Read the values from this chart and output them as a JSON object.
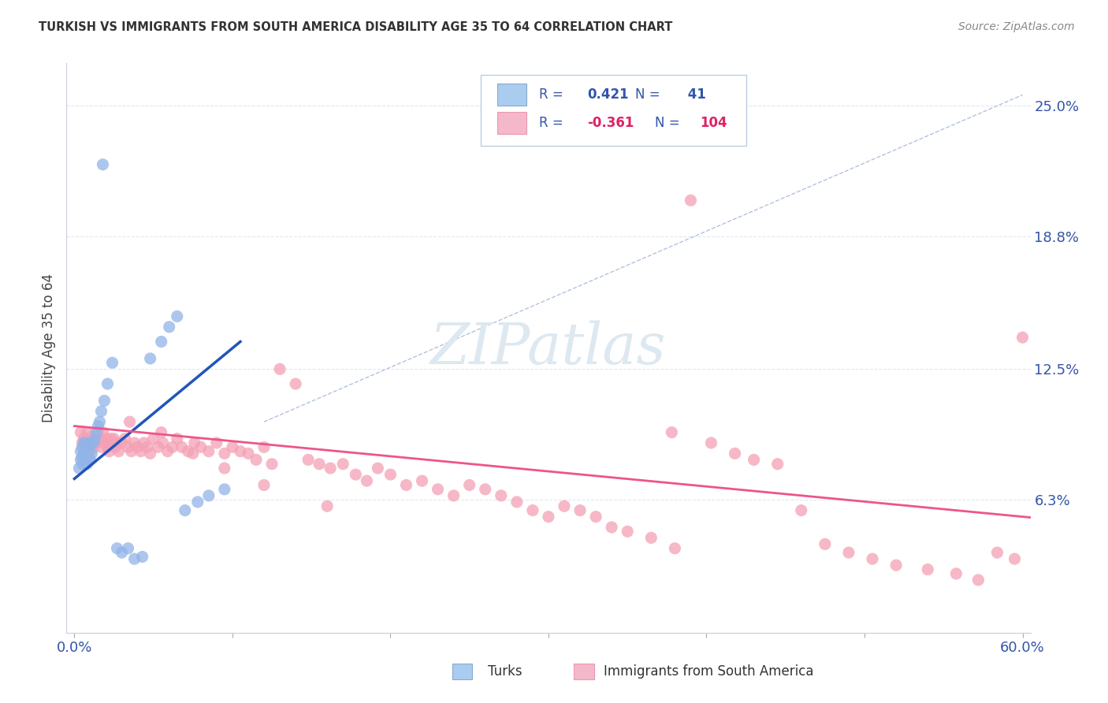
{
  "title": "TURKISH VS IMMIGRANTS FROM SOUTH AMERICA DISABILITY AGE 35 TO 64 CORRELATION CHART",
  "source": "Source: ZipAtlas.com",
  "ylabel": "Disability Age 35 to 64",
  "xlim": [
    -0.005,
    0.605
  ],
  "ylim": [
    0.0,
    0.27
  ],
  "xticks": [
    0.0,
    0.1,
    0.2,
    0.3,
    0.4,
    0.5,
    0.6
  ],
  "xticklabels": [
    "0.0%",
    "",
    "",
    "",
    "",
    "",
    "60.0%"
  ],
  "ytick_positions": [
    0.0,
    0.063,
    0.125,
    0.188,
    0.25
  ],
  "ytick_labels": [
    "",
    "6.3%",
    "12.5%",
    "18.8%",
    "25.0%"
  ],
  "R_turks": 0.421,
  "N_turks": 41,
  "R_immigrants": -0.361,
  "N_immigrants": 104,
  "turk_color": "#92b4e8",
  "immigrant_color": "#f4a0b5",
  "turk_line_color": "#2255bb",
  "immigrant_line_color": "#ee5588",
  "diagonal_line_color": "#aabbdd",
  "watermark_color": "#dde8f0",
  "background_color": "#ffffff",
  "grid_color": "#e0e8f0",
  "text_color": "#3355aa",
  "turks_x": [
    0.003,
    0.004,
    0.004,
    0.005,
    0.005,
    0.005,
    0.006,
    0.006,
    0.007,
    0.007,
    0.007,
    0.008,
    0.008,
    0.009,
    0.009,
    0.01,
    0.01,
    0.011,
    0.012,
    0.013,
    0.014,
    0.015,
    0.016,
    0.017,
    0.019,
    0.021,
    0.024,
    0.027,
    0.03,
    0.034,
    0.038,
    0.043,
    0.048,
    0.055,
    0.06,
    0.065,
    0.07,
    0.078,
    0.085,
    0.095,
    0.018
  ],
  "turks_y": [
    0.078,
    0.082,
    0.086,
    0.08,
    0.083,
    0.088,
    0.085,
    0.09,
    0.082,
    0.085,
    0.09,
    0.08,
    0.086,
    0.083,
    0.088,
    0.082,
    0.09,
    0.085,
    0.09,
    0.092,
    0.095,
    0.098,
    0.1,
    0.105,
    0.11,
    0.118,
    0.128,
    0.04,
    0.038,
    0.04,
    0.035,
    0.036,
    0.13,
    0.138,
    0.145,
    0.15,
    0.058,
    0.062,
    0.065,
    0.068,
    0.222
  ],
  "immigrants_x": [
    0.004,
    0.005,
    0.006,
    0.007,
    0.008,
    0.009,
    0.01,
    0.011,
    0.012,
    0.013,
    0.014,
    0.015,
    0.016,
    0.017,
    0.018,
    0.019,
    0.02,
    0.021,
    0.022,
    0.023,
    0.024,
    0.025,
    0.026,
    0.027,
    0.028,
    0.03,
    0.032,
    0.034,
    0.036,
    0.038,
    0.04,
    0.042,
    0.044,
    0.046,
    0.048,
    0.05,
    0.053,
    0.056,
    0.059,
    0.062,
    0.065,
    0.068,
    0.072,
    0.076,
    0.08,
    0.085,
    0.09,
    0.095,
    0.1,
    0.105,
    0.11,
    0.115,
    0.12,
    0.125,
    0.13,
    0.14,
    0.148,
    0.155,
    0.162,
    0.17,
    0.178,
    0.185,
    0.192,
    0.2,
    0.21,
    0.22,
    0.23,
    0.24,
    0.25,
    0.26,
    0.27,
    0.28,
    0.29,
    0.3,
    0.31,
    0.32,
    0.33,
    0.34,
    0.35,
    0.365,
    0.378,
    0.39,
    0.403,
    0.418,
    0.43,
    0.445,
    0.46,
    0.475,
    0.49,
    0.505,
    0.52,
    0.54,
    0.558,
    0.572,
    0.584,
    0.595,
    0.6,
    0.035,
    0.055,
    0.075,
    0.095,
    0.12,
    0.16,
    0.38
  ],
  "immigrants_y": [
    0.095,
    0.09,
    0.092,
    0.088,
    0.095,
    0.09,
    0.086,
    0.093,
    0.088,
    0.092,
    0.09,
    0.095,
    0.092,
    0.088,
    0.095,
    0.09,
    0.092,
    0.088,
    0.086,
    0.092,
    0.09,
    0.092,
    0.088,
    0.09,
    0.086,
    0.09,
    0.092,
    0.088,
    0.086,
    0.09,
    0.088,
    0.086,
    0.09,
    0.088,
    0.085,
    0.092,
    0.088,
    0.09,
    0.086,
    0.088,
    0.092,
    0.088,
    0.086,
    0.09,
    0.088,
    0.086,
    0.09,
    0.085,
    0.088,
    0.086,
    0.085,
    0.082,
    0.088,
    0.08,
    0.125,
    0.118,
    0.082,
    0.08,
    0.078,
    0.08,
    0.075,
    0.072,
    0.078,
    0.075,
    0.07,
    0.072,
    0.068,
    0.065,
    0.07,
    0.068,
    0.065,
    0.062,
    0.058,
    0.055,
    0.06,
    0.058,
    0.055,
    0.05,
    0.048,
    0.045,
    0.095,
    0.205,
    0.09,
    0.085,
    0.082,
    0.08,
    0.058,
    0.042,
    0.038,
    0.035,
    0.032,
    0.03,
    0.028,
    0.025,
    0.038,
    0.035,
    0.14,
    0.1,
    0.095,
    0.085,
    0.078,
    0.07,
    0.06,
    0.04
  ]
}
